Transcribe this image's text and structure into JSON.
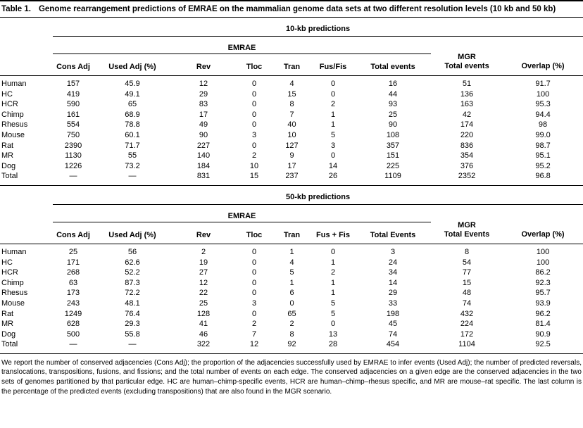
{
  "colors": {
    "text": "#000000",
    "background": "#ffffff",
    "rule": "#000000"
  },
  "caption": {
    "label": "Table 1.",
    "text": "Genome rearrangement predictions of EMRAE on the mammalian genome data sets at two different resolution levels (10 kb and 50 kb)"
  },
  "sections": [
    {
      "section_label": "10-kb predictions",
      "group_label": "EMRAE",
      "mgr_label_line1": "MGR",
      "mgr_label_line2": "Total events",
      "overlap_label": "Overlap (%)",
      "columns": [
        "Cons Adj",
        "Used Adj (%)",
        "Rev",
        "Tloc",
        "Tran",
        "Fus/Fis",
        "Total events"
      ],
      "rows": [
        {
          "label": "Human",
          "values": [
            "157",
            "45.9",
            "12",
            "0",
            "4",
            "0",
            "16",
            "51",
            "91.7"
          ]
        },
        {
          "label": "HC",
          "values": [
            "419",
            "49.1",
            "29",
            "0",
            "15",
            "0",
            "44",
            "136",
            "100"
          ]
        },
        {
          "label": "HCR",
          "values": [
            "590",
            "65",
            "83",
            "0",
            "8",
            "2",
            "93",
            "163",
            "95.3"
          ]
        },
        {
          "label": "Chimp",
          "values": [
            "161",
            "68.9",
            "17",
            "0",
            "7",
            "1",
            "25",
            "42",
            "94.4"
          ]
        },
        {
          "label": "Rhesus",
          "values": [
            "554",
            "78.8",
            "49",
            "0",
            "40",
            "1",
            "90",
            "174",
            "98"
          ]
        },
        {
          "label": "Mouse",
          "values": [
            "750",
            "60.1",
            "90",
            "3",
            "10",
            "5",
            "108",
            "220",
            "99.0"
          ]
        },
        {
          "label": "Rat",
          "values": [
            "2390",
            "71.7",
            "227",
            "0",
            "127",
            "3",
            "357",
            "836",
            "98.7"
          ]
        },
        {
          "label": "MR",
          "values": [
            "1130",
            "55",
            "140",
            "2",
            "9",
            "0",
            "151",
            "354",
            "95.1"
          ]
        },
        {
          "label": "Dog",
          "values": [
            "1226",
            "73.2",
            "184",
            "10",
            "17",
            "14",
            "225",
            "376",
            "95.2"
          ]
        },
        {
          "label": "Total",
          "values": [
            "—",
            "—",
            "831",
            "15",
            "237",
            "26",
            "1109",
            "2352",
            "96.8"
          ]
        }
      ]
    },
    {
      "section_label": "50-kb predictions",
      "group_label": "EMRAE",
      "mgr_label_line1": "MGR",
      "mgr_label_line2": "Total Events",
      "overlap_label": "Overlap (%)",
      "columns": [
        "Cons Adj",
        "Used Adj (%)",
        "Rev",
        "Tloc",
        "Tran",
        "Fus + Fis",
        "Total Events"
      ],
      "rows": [
        {
          "label": "Human",
          "values": [
            "25",
            "56",
            "2",
            "0",
            "1",
            "0",
            "3",
            "8",
            "100"
          ]
        },
        {
          "label": "HC",
          "values": [
            "171",
            "62.6",
            "19",
            "0",
            "4",
            "1",
            "24",
            "54",
            "100"
          ]
        },
        {
          "label": "HCR",
          "values": [
            "268",
            "52.2",
            "27",
            "0",
            "5",
            "2",
            "34",
            "77",
            "86.2"
          ]
        },
        {
          "label": "Chimp",
          "values": [
            "63",
            "87.3",
            "12",
            "0",
            "1",
            "1",
            "14",
            "15",
            "92.3"
          ]
        },
        {
          "label": "Rhesus",
          "values": [
            "173",
            "72.2",
            "22",
            "0",
            "6",
            "1",
            "29",
            "48",
            "95.7"
          ]
        },
        {
          "label": "Mouse",
          "values": [
            "243",
            "48.1",
            "25",
            "3",
            "0",
            "5",
            "33",
            "74",
            "93.9"
          ]
        },
        {
          "label": "Rat",
          "values": [
            "1249",
            "76.4",
            "128",
            "0",
            "65",
            "5",
            "198",
            "432",
            "96.2"
          ]
        },
        {
          "label": "MR",
          "values": [
            "628",
            "29.3",
            "41",
            "2",
            "2",
            "0",
            "45",
            "224",
            "81.4"
          ]
        },
        {
          "label": "Dog",
          "values": [
            "500",
            "55.8",
            "46",
            "7",
            "8",
            "13",
            "74",
            "172",
            "90.9"
          ]
        },
        {
          "label": "Total",
          "values": [
            "—",
            "—",
            "322",
            "12",
            "92",
            "28",
            "454",
            "1104",
            "92.5"
          ]
        }
      ]
    }
  ],
  "footnote": "We report the number of conserved adjacencies (Cons Adj); the proportion of the adjacencies successfully used by EMRAE to infer events (Used Adj); the number of predicted reversals, translocations, transpositions, fusions, and fissions; and the total number of events on each edge. The conserved adjacencies on a given edge are the conserved adjacencies in the two sets of genomes partitioned by that particular edge. HC are human–chimp-specific events, HCR are human–chimp–rhesus specific, and MR are mouse–rat specific. The last column is the percentage of the predicted events (excluding transpositions) that are also found in the MGR scenario."
}
